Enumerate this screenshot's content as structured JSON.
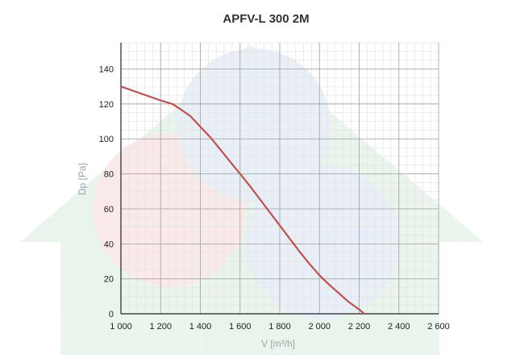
{
  "chart_data": {
    "type": "line",
    "title": "APFV-L 300 2M",
    "xlabel": "V [m³/h]",
    "ylabel": "Dp [Pa]",
    "xlim": [
      1000,
      2600
    ],
    "ylim": [
      0,
      155
    ],
    "x_ticks": [
      1000,
      1200,
      1400,
      1600,
      1800,
      2000,
      2200,
      2400,
      2600
    ],
    "x_tick_labels": [
      "1 000",
      "1 200",
      "1 400",
      "1 600",
      "1 800",
      "2 000",
      "2 200",
      "2 400",
      "2 600"
    ],
    "y_ticks": [
      0,
      20,
      40,
      60,
      80,
      100,
      120,
      140
    ],
    "y_tick_labels": [
      "0",
      "20",
      "40",
      "60",
      "80",
      "100",
      "120",
      "140"
    ],
    "grid": true,
    "series": [
      {
        "color": "#c0504d",
        "x": [
          1000,
          1100,
          1200,
          1260,
          1300,
          1350,
          1400,
          1450,
          1500,
          1550,
          1600,
          1650,
          1700,
          1750,
          1800,
          1850,
          1900,
          1950,
          2000,
          2050,
          2100,
          2150,
          2200,
          2225
        ],
        "y": [
          130,
          126,
          122,
          120,
          117,
          113,
          107,
          101,
          94,
          87,
          80,
          73,
          65.5,
          58,
          50.5,
          43,
          35.5,
          28.5,
          22,
          16.5,
          11.5,
          6.5,
          2.5,
          0
        ]
      }
    ]
  }
}
